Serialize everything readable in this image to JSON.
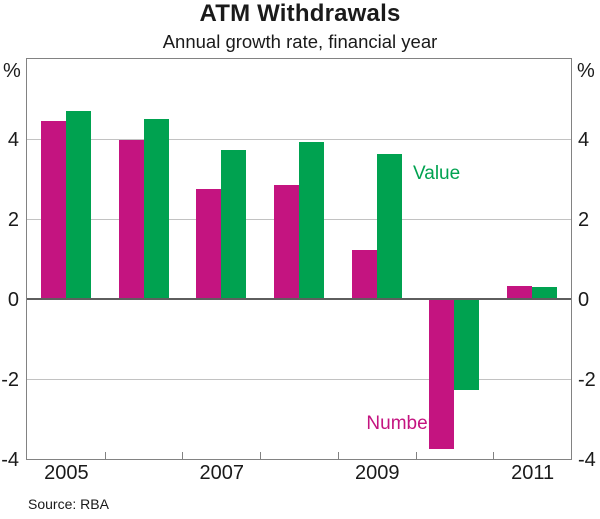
{
  "title": "ATM Withdrawals",
  "subtitle": "Annual growth rate, financial year",
  "source": "Source: RBA",
  "axis": {
    "unit_left": "%",
    "unit_right": "%"
  },
  "chart_data": {
    "type": "bar",
    "title": "ATM Withdrawals",
    "subtitle": "Annual growth rate, financial year",
    "unit": "%",
    "categories": [
      "2005",
      "2006",
      "2007",
      "2008",
      "2009",
      "2010",
      "2011"
    ],
    "series": [
      {
        "name": "Number",
        "color": "#C41480",
        "values": [
          4.45,
          3.97,
          2.75,
          2.85,
          1.22,
          -3.76,
          0.33
        ]
      },
      {
        "name": "Value",
        "color": "#00A250",
        "values": [
          4.7,
          4.5,
          3.72,
          3.93,
          3.62,
          -2.27,
          0.3
        ]
      }
    ],
    "ylim": [
      -4,
      6
    ],
    "gridlines": [
      4,
      2,
      0,
      -2
    ],
    "ytick_labels": [
      "4",
      "2",
      "0",
      "-2",
      "-4"
    ],
    "ytick_values": [
      4,
      2,
      0,
      -2,
      -4
    ],
    "xtick_labels": [
      "2005",
      "2007",
      "2009",
      "2011"
    ],
    "grid": "horizontal",
    "legend_position": "labels-on-chart",
    "frame_color": "#828282",
    "text_color": "#1a1a1a"
  }
}
